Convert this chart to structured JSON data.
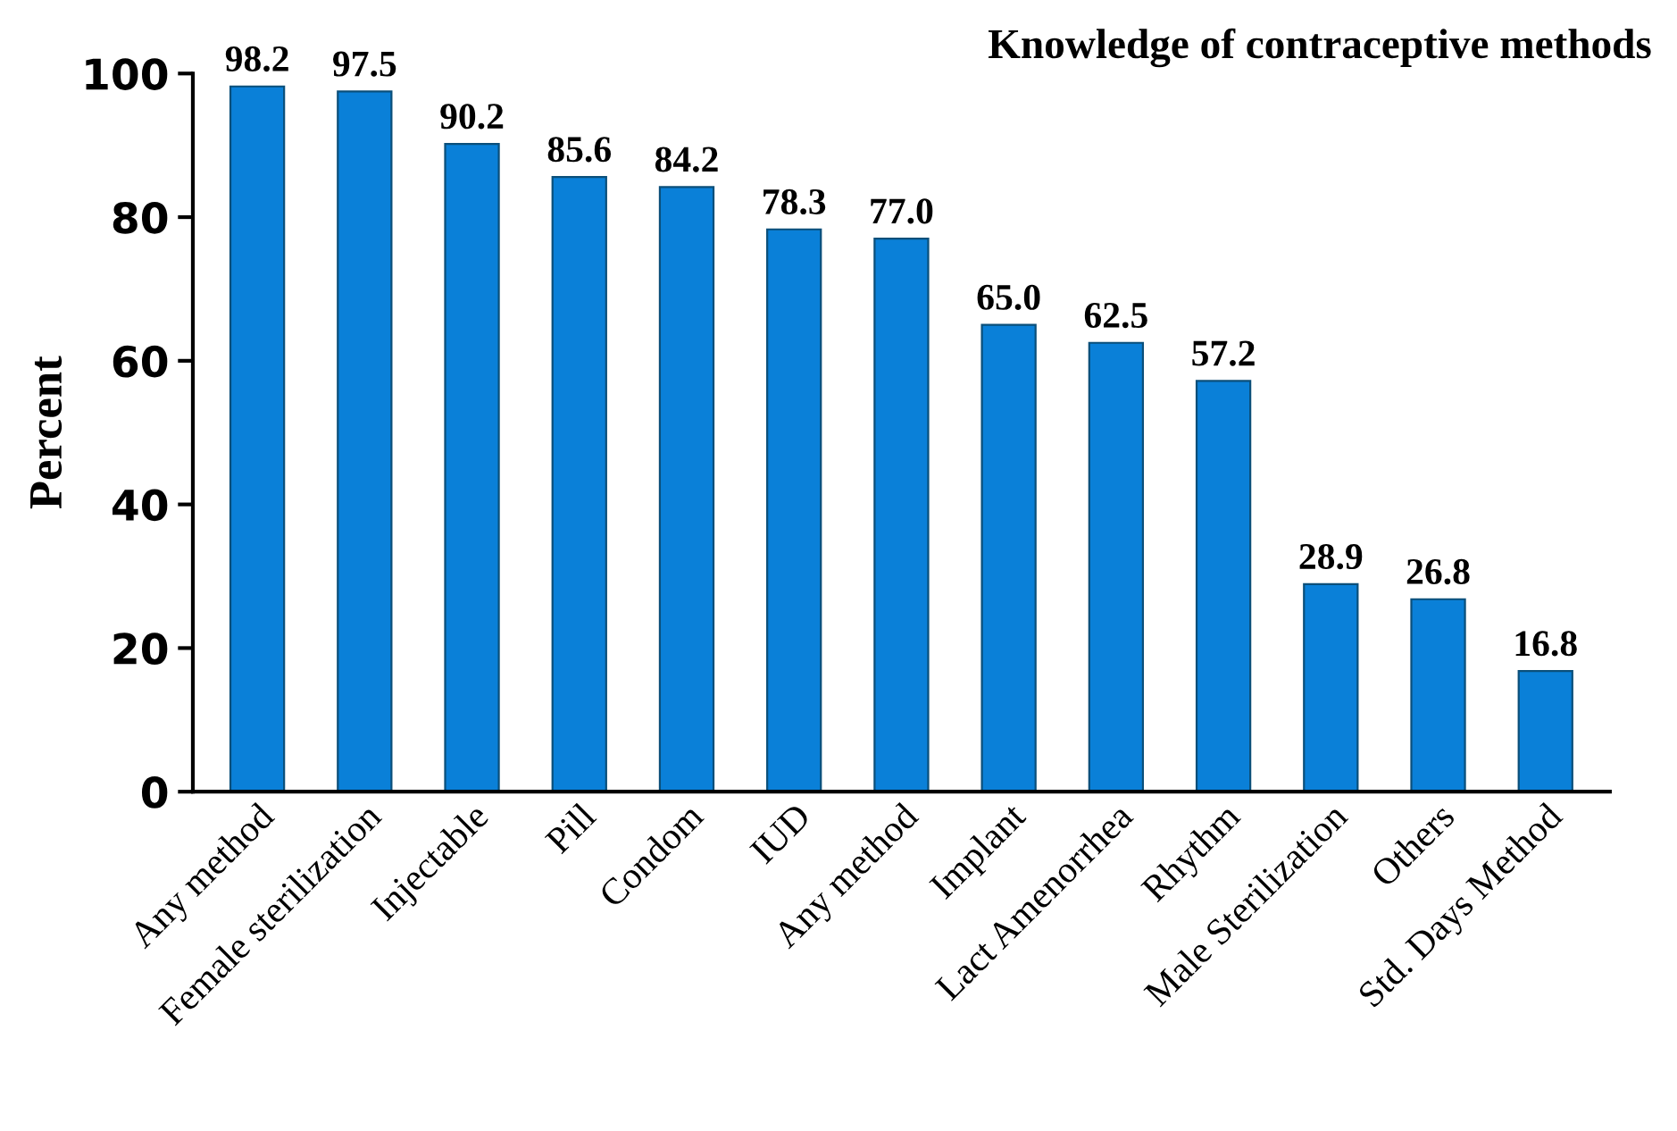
{
  "chart_data": {
    "type": "bar",
    "title": "Knowledge of contraceptive methods",
    "ylabel": "Percent",
    "categories": [
      "Any method",
      "Female sterilization",
      "Injectable",
      "Pill",
      "Condom",
      "IUD",
      "Any method",
      "Implant",
      "Lact Amenorrhea",
      "Rhythm",
      "Male Sterilization",
      "Others",
      "Std. Days Method"
    ],
    "values": [
      98.2,
      97.5,
      90.2,
      85.6,
      84.2,
      78.3,
      77.0,
      65.0,
      62.5,
      57.2,
      28.9,
      26.8,
      16.8
    ],
    "value_labels": [
      "98.2",
      "97.5",
      "90.2",
      "85.6",
      "84.2",
      "78.3",
      "77.0",
      "65.0",
      "62.5",
      "57.2",
      "28.9",
      "26.8",
      "16.8"
    ],
    "color": "#0a80d8",
    "ylim": [
      0,
      100
    ],
    "yticks": [
      0,
      20,
      40,
      60,
      80,
      100
    ],
    "grid": false,
    "legend": false
  }
}
